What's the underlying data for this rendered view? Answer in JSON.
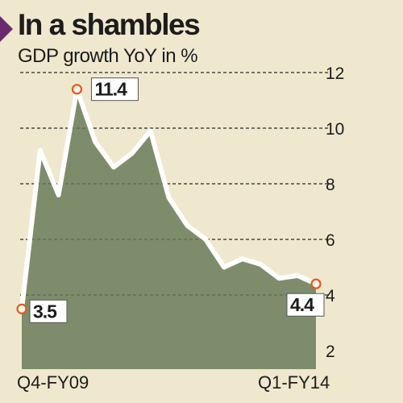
{
  "header": {
    "title": "In a shambles",
    "subtitle": "GDP growth YoY in %"
  },
  "colors": {
    "background": "#efe8cf",
    "area_fill": "#7d8d6b",
    "line": "#ffffff",
    "marker": "#e35a1e",
    "accent_triangle": "#6b2a6e",
    "gridline": "#2a2a2a"
  },
  "chart_data": {
    "type": "area",
    "title": "In a shambles",
    "subtitle": "GDP growth YoY in %",
    "xlabel": "",
    "ylabel": "",
    "x_tick_labels": [
      "Q4-FY09",
      "Q1-FY14"
    ],
    "ylim": [
      2,
      12
    ],
    "yticks": [
      2,
      4,
      6,
      8,
      10,
      12
    ],
    "grid": true,
    "series": [
      {
        "values": [
          3.5,
          9.2,
          7.6,
          11.4,
          9.5,
          8.6,
          9.1,
          9.9,
          7.5,
          6.5,
          6.0,
          5.0,
          5.3,
          5.1,
          4.6,
          4.7,
          4.4
        ]
      }
    ],
    "annotations": [
      {
        "label": "3.5",
        "index": 0,
        "value": 3.5
      },
      {
        "label": "11.4",
        "index": 3,
        "value": 11.4
      },
      {
        "label": "4.4",
        "index": 16,
        "value": 4.4
      }
    ]
  }
}
